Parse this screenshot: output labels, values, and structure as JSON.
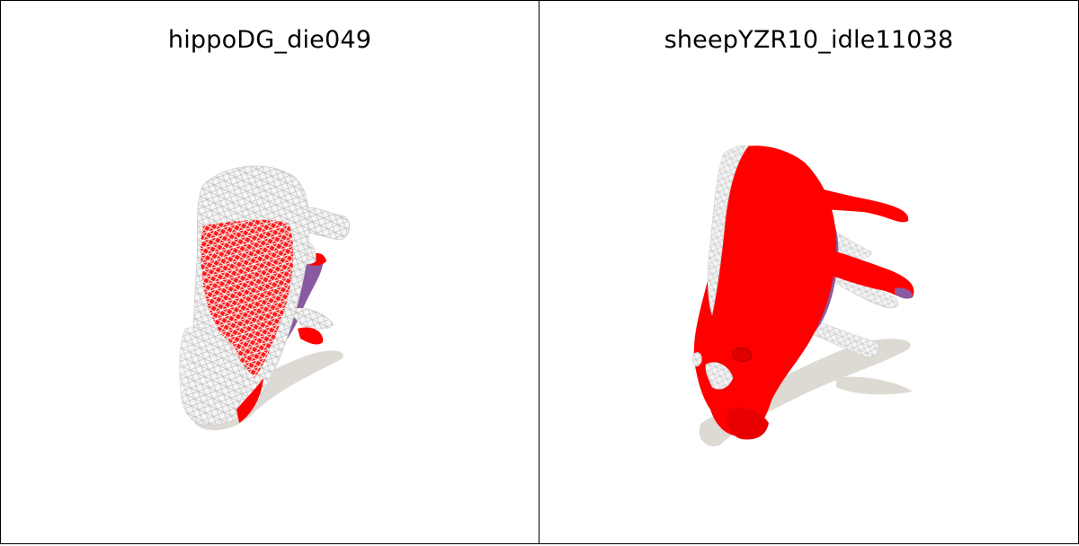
{
  "viewports": [
    {
      "title": "hippoDG_die049"
    },
    {
      "title": "sheepYZR10_idle11038"
    }
  ],
  "colors": {
    "border": "#000000",
    "background": "#ffffff",
    "surface_red": "#ff0000",
    "surface_purple": "#8a5aa0",
    "wireframe": "#e8e8e8",
    "shadow": "#dcdad3"
  }
}
